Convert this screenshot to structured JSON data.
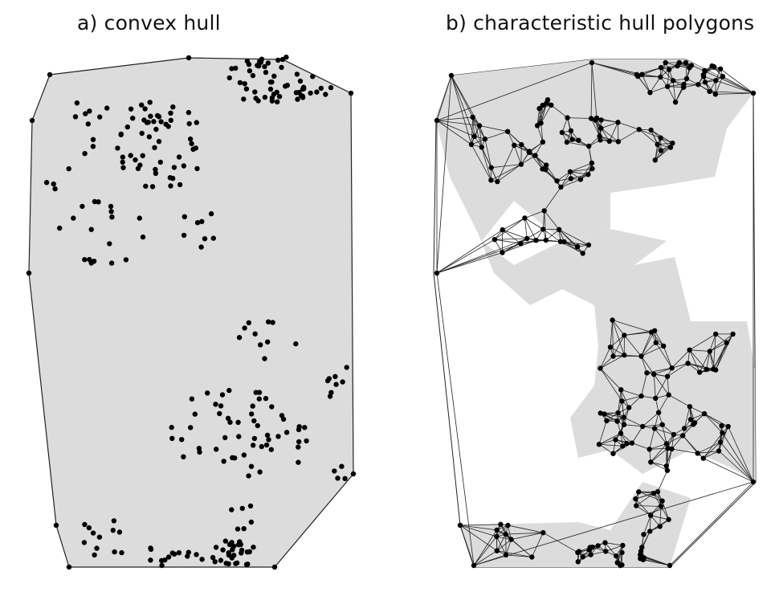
{
  "panels": [
    {
      "id": "a",
      "title": "a) convex hull"
    },
    {
      "id": "b",
      "title": "b) characteristic hull polygons"
    }
  ],
  "colors": {
    "fill": "#dcdcdc",
    "stroke": "#222222",
    "point": "#000000",
    "background": "#ffffff"
  }
}
